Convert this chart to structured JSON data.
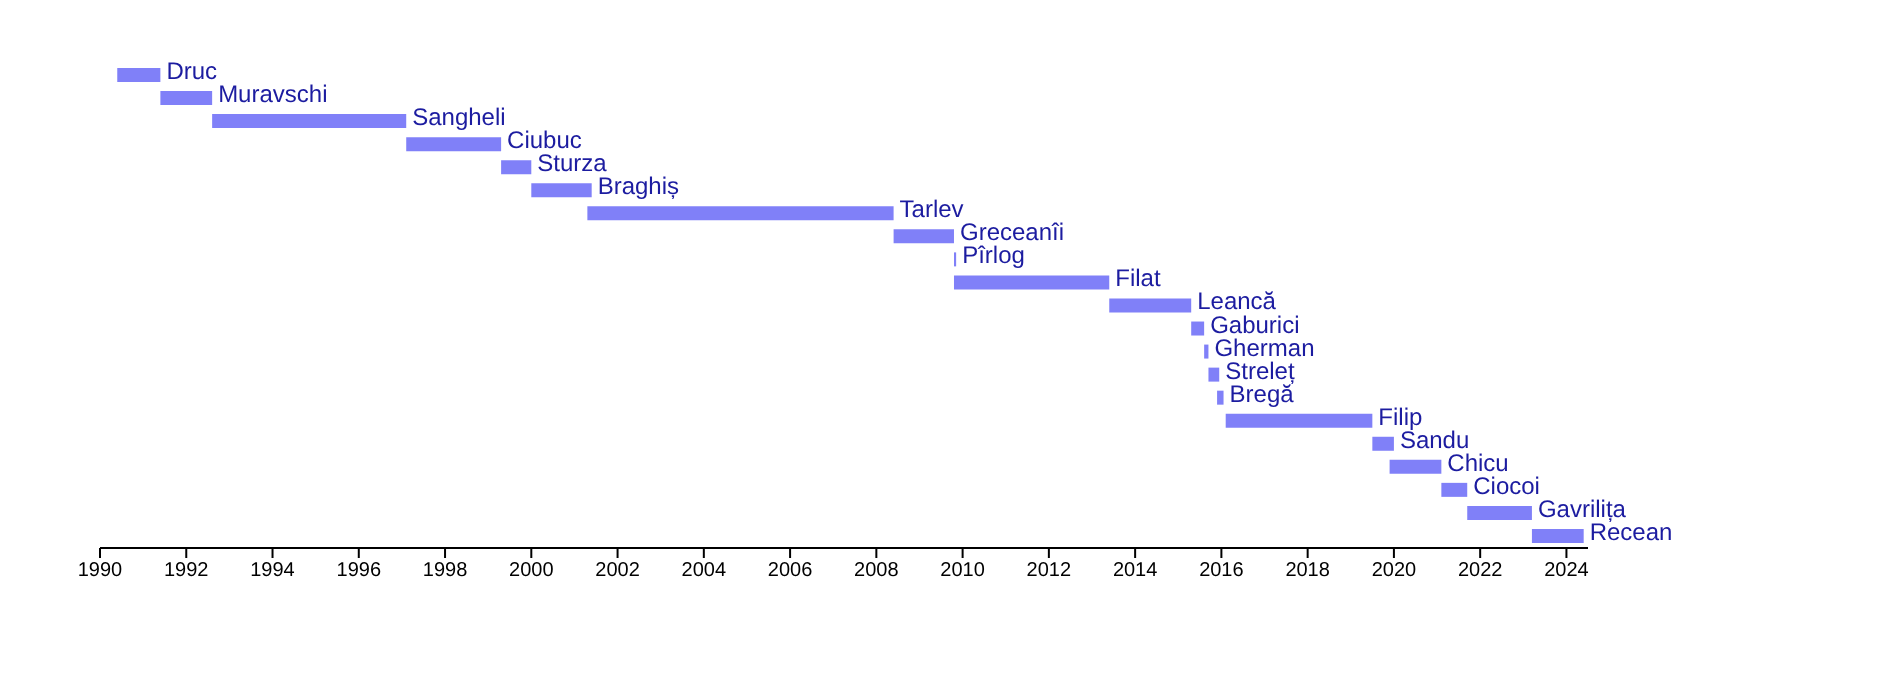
{
  "chart_data": {
    "type": "bar",
    "orientation": "horizontal",
    "categories": [
      "Druc",
      "Muravschi",
      "Sangheli",
      "Ciubuc",
      "Sturza",
      "Braghiș",
      "Tarlev",
      "Greceanîi",
      "Pîrlog",
      "Filat",
      "Leancă",
      "Gaburici",
      "Gherman",
      "Streleț",
      "Bregă",
      "Filip",
      "Sandu",
      "Chicu",
      "Ciocoi",
      "Gavrilița",
      "Recean"
    ],
    "base": [
      1990.4,
      1991.4,
      1992.6,
      1997.1,
      1999.3,
      2000.0,
      2001.3,
      2008.4,
      2009.8,
      2009.8,
      2013.4,
      2015.3,
      2015.6,
      2015.7,
      2015.9,
      2016.1,
      2019.5,
      2019.9,
      2021.1,
      2021.7,
      2023.2
    ],
    "values": [
      1.0,
      1.2,
      4.5,
      2.2,
      0.7,
      1.4,
      7.1,
      1.4,
      0.05,
      3.6,
      1.9,
      0.3,
      0.1,
      0.25,
      0.15,
      3.4,
      0.5,
      1.2,
      0.6,
      1.5,
      1.2
    ],
    "color": "#8080f8",
    "xlim": [
      1990,
      2024.5
    ],
    "xticks": [
      1990,
      1992,
      1994,
      1996,
      1998,
      2000,
      2002,
      2004,
      2006,
      2008,
      2010,
      2012,
      2014,
      2016,
      2018,
      2020,
      2022,
      2024
    ],
    "tick_labels": "x"
  }
}
